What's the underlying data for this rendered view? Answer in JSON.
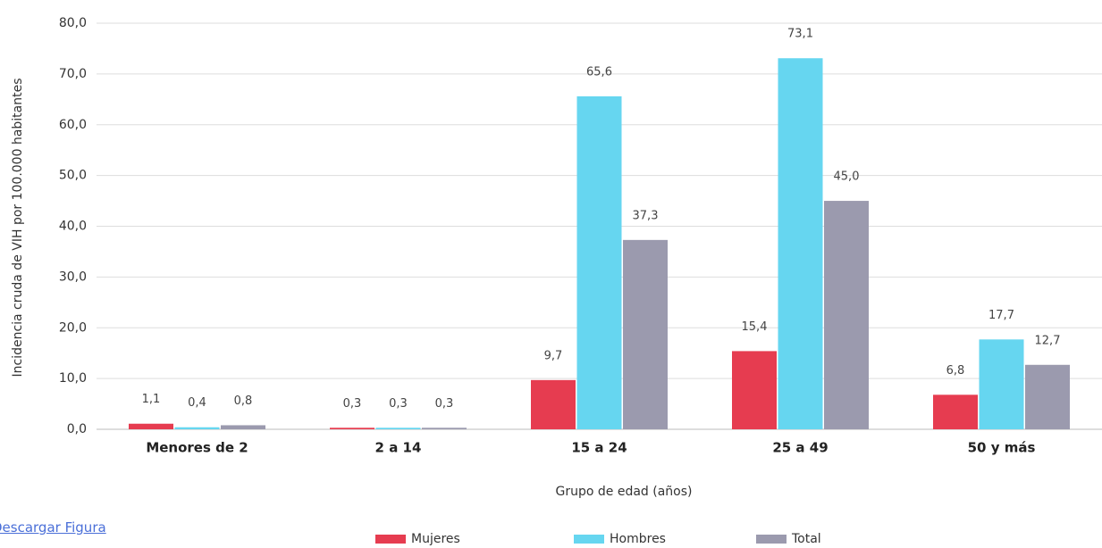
{
  "chart_data": {
    "type": "bar",
    "y_label": "Incidencia cruda de VIH por 100.000 habitantes",
    "x_label": "Grupo de edad (años)",
    "categories": [
      "Menores de 2",
      "2 a 14",
      "15 a 24",
      "25 a 49",
      "50 y más"
    ],
    "series": [
      {
        "name": "Mujeres",
        "color": "#e63c50",
        "values": [
          1.1,
          0.3,
          9.7,
          15.4,
          6.8
        ],
        "value_labels": [
          "1,1",
          "0,3",
          "9,7",
          "15,4",
          "6,8"
        ]
      },
      {
        "name": "Hombres",
        "color": "#66d6f0",
        "values": [
          0.4,
          0.3,
          65.6,
          73.1,
          17.7
        ],
        "value_labels": [
          "0,4",
          "0,3",
          "65,6",
          "73,1",
          "17,7"
        ]
      },
      {
        "name": "Total",
        "color": "#9b9aae",
        "values": [
          0.8,
          0.3,
          37.3,
          45.0,
          12.7
        ],
        "value_labels": [
          "0,8",
          "0,3",
          "37,3",
          "45,0",
          "12,7"
        ]
      }
    ],
    "ylim": [
      0,
      80
    ],
    "yticks": [
      {
        "value": 0,
        "label": "0,0"
      },
      {
        "value": 10,
        "label": "10,0"
      },
      {
        "value": 20,
        "label": "20,0"
      },
      {
        "value": 30,
        "label": "30,0"
      },
      {
        "value": 40,
        "label": "40,0"
      },
      {
        "value": 50,
        "label": "50,0"
      },
      {
        "value": 60,
        "label": "60,0"
      },
      {
        "value": 70,
        "label": "70,0"
      },
      {
        "value": 80,
        "label": "80,0"
      }
    ],
    "grid": true,
    "legend": "bottom"
  },
  "link": "Descargar Figura"
}
